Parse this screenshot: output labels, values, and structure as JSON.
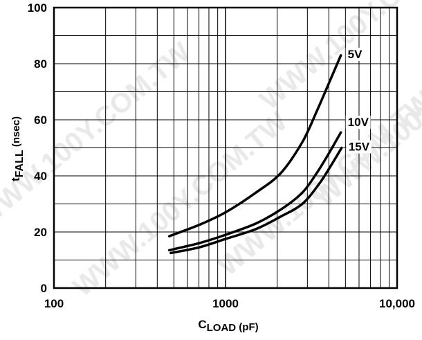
{
  "watermark": "WWW.100Y.COM.TW",
  "colors": {
    "background": "#ffffff",
    "grid": "#000000",
    "line": "#000000",
    "watermark": "#e9e9e9"
  },
  "chart_data": {
    "type": "line",
    "x_scale": "log",
    "xlim": [
      100,
      10000
    ],
    "ylim": [
      0,
      100
    ],
    "grid": true,
    "xlabel": {
      "main": "C",
      "sub": "LOAD",
      "suffix": " (pF)"
    },
    "ylabel": {
      "main": "t",
      "sub": "FALL",
      "suffix": " (nsec)"
    },
    "x_ticks": [
      {
        "value": 100,
        "label": "100"
      },
      {
        "value": 1000,
        "label": "1000"
      },
      {
        "value": 10000,
        "label": "10,000"
      }
    ],
    "y_ticks": [
      {
        "value": 0,
        "label": "0"
      },
      {
        "value": 20,
        "label": "20"
      },
      {
        "value": 40,
        "label": "40"
      },
      {
        "value": 60,
        "label": "60"
      },
      {
        "value": 80,
        "label": "80"
      },
      {
        "value": 100,
        "label": "100"
      }
    ],
    "series": [
      {
        "name": "5V",
        "x": [
          470,
          700,
          1000,
          1500,
          2100,
          2800,
          3400,
          4000,
          4700
        ],
        "y": [
          18.5,
          22.5,
          27,
          34,
          41,
          52,
          63,
          73,
          83
        ]
      },
      {
        "name": "10V",
        "x": [
          470,
          700,
          1000,
          1500,
          2100,
          2800,
          3400,
          4000,
          4700
        ],
        "y": [
          13.5,
          16,
          19,
          23,
          28,
          34,
          41,
          48,
          55.5
        ]
      },
      {
        "name": "15V",
        "x": [
          480,
          700,
          1000,
          1500,
          2100,
          2800,
          3500,
          4100,
          4750
        ],
        "y": [
          12.5,
          14.5,
          17.5,
          21,
          25.5,
          30,
          37,
          43.5,
          50
        ]
      }
    ]
  }
}
